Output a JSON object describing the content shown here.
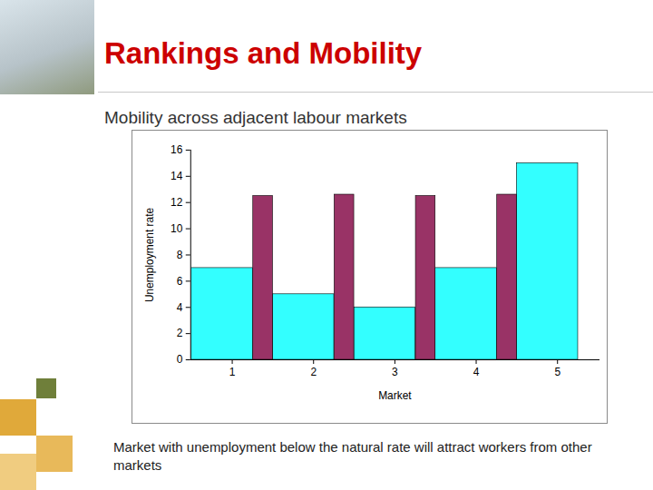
{
  "chart_data": {
    "type": "bar",
    "title": "Rankings and Mobility",
    "subtitle": "Mobility across adjacent labour markets",
    "annotations": [
      "Market with unemployment below the natural rate will attract workers from other markets"
    ],
    "x_label": "Market",
    "y_label": "Unemployment rate",
    "categories": [
      "1",
      "2",
      "3",
      "4",
      "5"
    ],
    "series": [
      {
        "color": "#33ffff",
        "values": [
          7,
          5,
          4,
          7,
          15
        ]
      },
      {
        "color": "#993366",
        "values": [
          12.5,
          12.6,
          12.5,
          12.6,
          null
        ]
      }
    ],
    "ylim": [
      0,
      16
    ],
    "yticks": [
      0,
      2,
      4,
      6,
      8,
      10,
      12,
      14,
      16
    ],
    "grid": false
  }
}
